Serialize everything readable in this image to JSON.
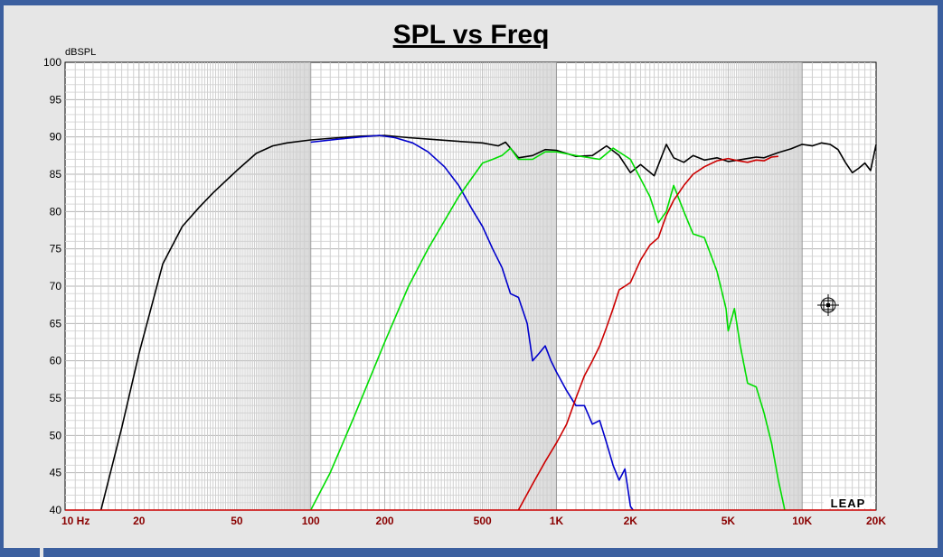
{
  "chart_data": {
    "type": "line",
    "title": "SPL vs Freq",
    "ylabel": "dBSPL",
    "xlabel": "",
    "x_scale": "log",
    "xlim": [
      10,
      20000
    ],
    "ylim": [
      40,
      100
    ],
    "grid": true,
    "y_ticks": [
      100,
      95,
      90,
      85,
      80,
      75,
      70,
      65,
      60,
      55,
      50,
      45,
      40
    ],
    "x_ticks": [
      {
        "value": 10,
        "label": "10  Hz"
      },
      {
        "value": 20,
        "label": "20"
      },
      {
        "value": 50,
        "label": "50"
      },
      {
        "value": 100,
        "label": "100"
      },
      {
        "value": 200,
        "label": "200"
      },
      {
        "value": 500,
        "label": "500"
      },
      {
        "value": 1000,
        "label": "1K"
      },
      {
        "value": 2000,
        "label": "2K"
      },
      {
        "value": 5000,
        "label": "5K"
      },
      {
        "value": 10000,
        "label": "10K"
      },
      {
        "value": 20000,
        "label": "20K"
      }
    ],
    "logo": "LEAP",
    "series": [
      {
        "color": "#000000",
        "x": [
          14,
          17,
          20,
          25,
          30,
          35,
          40,
          50,
          60,
          70,
          80,
          100,
          130,
          160,
          200,
          250,
          300,
          400,
          500,
          580,
          620,
          650,
          700,
          800,
          900,
          1000,
          1200,
          1400,
          1600,
          1800,
          2000,
          2200,
          2500,
          2800,
          3000,
          3300,
          3600,
          4000,
          4500,
          5000,
          5500,
          6000,
          6500,
          7000,
          8000,
          9000,
          10000,
          11000,
          12000,
          13000,
          14000,
          15000,
          16000,
          17000,
          18000,
          19000,
          20000
        ],
        "y": [
          40,
          51,
          61,
          73,
          78,
          80.5,
          82.5,
          85.5,
          87.8,
          88.8,
          89.2,
          89.6,
          89.9,
          90.1,
          90.2,
          89.9,
          89.7,
          89.4,
          89.2,
          88.8,
          89.3,
          88.5,
          87.2,
          87.5,
          88.3,
          88.2,
          87.4,
          87.5,
          88.8,
          87.5,
          85.2,
          86.3,
          84.8,
          89.0,
          87.2,
          86.6,
          87.5,
          86.9,
          87.2,
          86.7,
          86.9,
          87.1,
          87.3,
          87.2,
          87.9,
          88.4,
          89.0,
          88.8,
          89.2,
          89.0,
          88.3,
          86.6,
          85.2,
          85.8,
          86.5,
          85.5,
          89.0
        ]
      },
      {
        "color": "#0000cc",
        "x": [
          100,
          130,
          160,
          190,
          220,
          260,
          300,
          350,
          400,
          450,
          500,
          550,
          600,
          650,
          700,
          760,
          800,
          850,
          900,
          950,
          1000,
          1100,
          1200,
          1300,
          1400,
          1500,
          1600,
          1700,
          1800,
          1900,
          2000,
          2050
        ],
        "y": [
          89.3,
          89.7,
          90.0,
          90.2,
          89.9,
          89.2,
          88.0,
          86.0,
          83.5,
          80.5,
          78.0,
          75.0,
          72.5,
          69.0,
          68.5,
          65.0,
          60.0,
          61.0,
          62.0,
          60.0,
          58.5,
          56.0,
          54.0,
          54.0,
          51.5,
          52.0,
          49.0,
          46.0,
          44.0,
          45.5,
          40.5,
          40.0
        ]
      },
      {
        "color": "#00dd00",
        "x": [
          100,
          120,
          150,
          200,
          250,
          300,
          400,
          500,
          550,
          600,
          650,
          700,
          800,
          900,
          1000,
          1200,
          1500,
          1700,
          2000,
          2400,
          2600,
          2800,
          3000,
          3300,
          3600,
          4000,
          4500,
          4900,
          5000,
          5300,
          5600,
          6000,
          6500,
          7000,
          7500,
          8000,
          8500
        ],
        "y": [
          40,
          45,
          52.5,
          62.5,
          70.0,
          75.0,
          82.0,
          86.5,
          87.0,
          87.5,
          88.5,
          87.0,
          87.0,
          88.0,
          88.0,
          87.5,
          87.0,
          88.5,
          87.0,
          82.0,
          78.5,
          80.0,
          83.5,
          80.0,
          77.0,
          76.5,
          72.0,
          67.0,
          64.0,
          67.0,
          62.0,
          57.0,
          56.5,
          53.0,
          49.0,
          44.0,
          40.0
        ]
      },
      {
        "color": "#cc0000",
        "x": [
          700,
          800,
          900,
          1000,
          1100,
          1200,
          1300,
          1400,
          1500,
          1600,
          1700,
          1800,
          1900,
          2000,
          2200,
          2400,
          2600,
          2800,
          3000,
          3300,
          3600,
          4000,
          4500,
          5000,
          5500,
          6000,
          6500,
          7000,
          7500,
          8000
        ],
        "y": [
          40,
          43.5,
          46.5,
          49.0,
          51.5,
          55.0,
          58.0,
          60.0,
          62.0,
          64.5,
          67.0,
          69.5,
          70.0,
          70.5,
          73.5,
          75.5,
          76.5,
          79.5,
          81.5,
          83.5,
          85.0,
          86.0,
          86.8,
          87.1,
          86.8,
          86.6,
          86.9,
          86.8,
          87.3,
          87.4
        ]
      }
    ]
  }
}
